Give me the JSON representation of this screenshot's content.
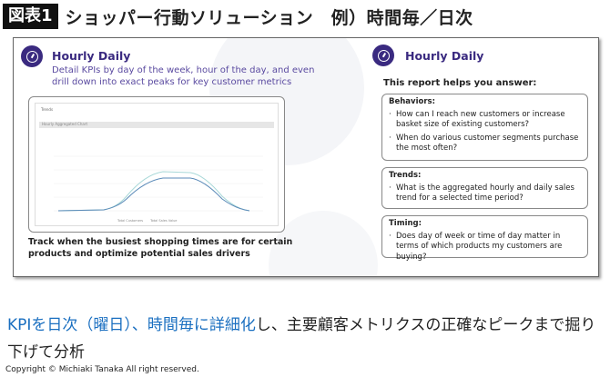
{
  "header": {
    "badge": "図表1",
    "title": "ショッパー行動ソリューション　例）時間毎／日次"
  },
  "left": {
    "icon": "clock-icon",
    "title": "Hourly Daily",
    "description": "Detail KPIs by day of the week, hour of the day, and even drill down into exact peaks for key customer metrics",
    "screenshot": {
      "panel_title": "Trends",
      "dropdown": "Hourly Aggregated Chart",
      "legend": [
        "Total Customers",
        "Total Sales Value"
      ]
    },
    "track": "Track when the busiest shopping times are for certain products and optimize potential sales drivers"
  },
  "right": {
    "icon": "clock-icon",
    "title": "Hourly Daily",
    "helps": "This report helps you answer:",
    "sections": [
      {
        "heading": "Behaviors:",
        "items": [
          "How can I reach new customers or increase basket size of existing customers?",
          "When do various customer segments purchase the most often?"
        ]
      },
      {
        "heading": "Trends:",
        "items": [
          "What is the aggregated hourly and daily sales trend for a selected time period?"
        ]
      },
      {
        "heading": "Timing:",
        "items": [
          "Does day of week or time of day matter in terms of which products my customers are buying?"
        ]
      }
    ]
  },
  "caption": {
    "blue": "KPIを日次（曜日）、時間毎に詳細化",
    "rest": "し、主要顧客メトリクスの正確なピークまで掘り下げて分析"
  },
  "copyright": "Copyright © Michiaki Tanaka All right reserved.",
  "colors": {
    "accent": "#3a2a80",
    "caption_blue": "#1a6fc0"
  }
}
